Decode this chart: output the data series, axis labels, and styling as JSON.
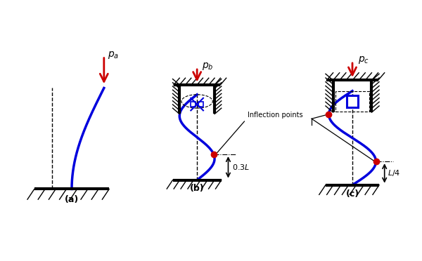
{
  "bg_color": "#ffffff",
  "blue": "#0000dd",
  "red": "#cc0000",
  "black": "#000000",
  "label_a": "$p_a$",
  "label_b": "$p_b$",
  "label_c": "$p_c$",
  "annotation_infl": "Inflection points",
  "annotation_03L": "$0.3L$",
  "annotation_L4": "$L/4$",
  "panel_a": "(a)",
  "panel_b": "(b)",
  "panel_c": "(c)"
}
